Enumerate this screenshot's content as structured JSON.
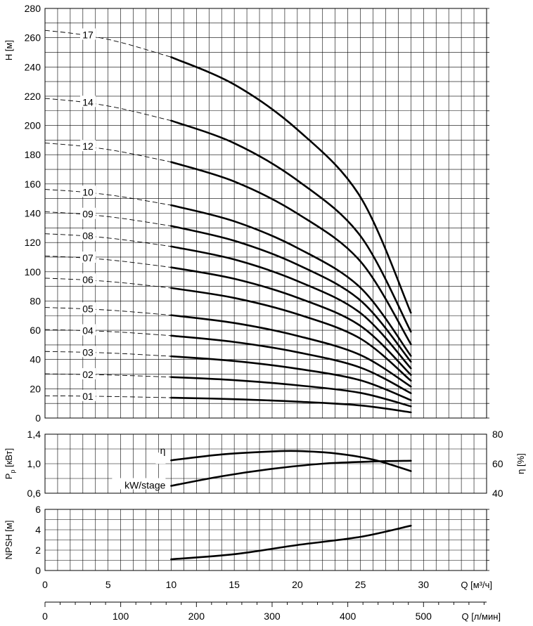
{
  "chart_data": [
    {
      "type": "line",
      "panel": "head",
      "ylabel": "H [м]",
      "ylim": [
        0,
        280
      ],
      "xlim": [
        0,
        35
      ],
      "yticks": [
        0,
        20,
        40,
        60,
        80,
        100,
        120,
        140,
        160,
        180,
        200,
        220,
        240,
        260,
        280
      ],
      "ytick_labels": [
        "0",
        "20",
        "40",
        "60",
        "80",
        "100",
        "120",
        "140",
        "160",
        "180",
        "200",
        "220",
        "240",
        "260",
        "280"
      ],
      "grid": true,
      "operating_range": [
        10,
        29
      ],
      "series": [
        {
          "name": "01",
          "extension": [
            [
              0,
              15.2
            ],
            [
              3,
              15.0
            ],
            [
              6,
              14.6
            ],
            [
              10,
              13.9
            ]
          ],
          "values": [
            [
              10,
              13.9
            ],
            [
              15,
              12.9
            ],
            [
              20,
              11.2
            ],
            [
              25,
              8.6
            ],
            [
              29,
              3.9
            ]
          ]
        },
        {
          "name": "02",
          "extension": [
            [
              0,
              30.2
            ],
            [
              3,
              29.8
            ],
            [
              6,
              29.2
            ],
            [
              10,
              28.0
            ]
          ],
          "values": [
            [
              10,
              28.0
            ],
            [
              15,
              25.9
            ],
            [
              20,
              22.4
            ],
            [
              25,
              17.2
            ],
            [
              29,
              8.0
            ]
          ]
        },
        {
          "name": "03",
          "extension": [
            [
              0,
              45.5
            ],
            [
              3,
              45.0
            ],
            [
              6,
              44.1
            ],
            [
              10,
              42.2
            ]
          ],
          "values": [
            [
              10,
              42.2
            ],
            [
              15,
              39.0
            ],
            [
              20,
              33.7
            ],
            [
              25,
              25.8
            ],
            [
              29,
              12.2
            ]
          ]
        },
        {
          "name": "04",
          "extension": [
            [
              0,
              60.5
            ],
            [
              3,
              59.8
            ],
            [
              6,
              58.7
            ],
            [
              10,
              56.3
            ]
          ],
          "values": [
            [
              10,
              56.3
            ],
            [
              15,
              52.0
            ],
            [
              20,
              45.0
            ],
            [
              25,
              34.5
            ],
            [
              29,
              17.0
            ]
          ]
        },
        {
          "name": "05",
          "extension": [
            [
              0,
              75.6
            ],
            [
              3,
              74.7
            ],
            [
              6,
              73.2
            ],
            [
              10,
              70.3
            ]
          ],
          "values": [
            [
              10,
              70.3
            ],
            [
              15,
              65.0
            ],
            [
              20,
              56.2
            ],
            [
              25,
              43.1
            ],
            [
              29,
              21.5
            ]
          ]
        },
        {
          "name": "06",
          "extension": [
            [
              0,
              95.6
            ],
            [
              3,
              94.5
            ],
            [
              6,
              92.6
            ],
            [
              10,
              88.9
            ]
          ],
          "values": [
            [
              10,
              88.9
            ],
            [
              15,
              82.1
            ],
            [
              20,
              71.0
            ],
            [
              25,
              54.3
            ],
            [
              29,
              25.5
            ]
          ]
        },
        {
          "name": "07",
          "extension": [
            [
              0,
              110.8
            ],
            [
              3,
              109.5
            ],
            [
              6,
              107.3
            ],
            [
              10,
              103.0
            ]
          ],
          "values": [
            [
              10,
              103.0
            ],
            [
              15,
              95.2
            ],
            [
              20,
              82.3
            ],
            [
              25,
              63.0
            ],
            [
              29,
              29.5
            ]
          ]
        },
        {
          "name": "08",
          "extension": [
            [
              0,
              126.0
            ],
            [
              3,
              124.6
            ],
            [
              6,
              122.1
            ],
            [
              10,
              117.3
            ]
          ],
          "values": [
            [
              10,
              117.3
            ],
            [
              15,
              108.4
            ],
            [
              20,
              93.7
            ],
            [
              25,
              71.8
            ],
            [
              29,
              34.0
            ]
          ]
        },
        {
          "name": "09",
          "extension": [
            [
              0,
              141.0
            ],
            [
              3,
              139.4
            ],
            [
              6,
              136.6
            ],
            [
              10,
              131.3
            ]
          ],
          "values": [
            [
              10,
              131.3
            ],
            [
              15,
              121.2
            ],
            [
              20,
              104.9
            ],
            [
              25,
              80.4
            ],
            [
              29,
              38.5
            ]
          ]
        },
        {
          "name": "10",
          "extension": [
            [
              0,
              156.3
            ],
            [
              3,
              154.5
            ],
            [
              6,
              151.4
            ],
            [
              10,
              145.5
            ]
          ],
          "values": [
            [
              10,
              145.5
            ],
            [
              15,
              134.5
            ],
            [
              20,
              116.3
            ],
            [
              25,
              89.1
            ],
            [
              29,
              42.5
            ]
          ]
        },
        {
          "name": "12",
          "extension": [
            [
              0,
              188.0
            ],
            [
              3,
              185.8
            ],
            [
              6,
              182.1
            ],
            [
              10,
              175.0
            ]
          ],
          "values": [
            [
              10,
              175.0
            ],
            [
              15,
              161.7
            ],
            [
              20,
              139.8
            ],
            [
              25,
              107.1
            ],
            [
              29,
              50.5
            ]
          ]
        },
        {
          "name": "14",
          "extension": [
            [
              0,
              218.5
            ],
            [
              3,
              216.0
            ],
            [
              6,
              211.6
            ],
            [
              10,
              203.3
            ]
          ],
          "values": [
            [
              10,
              203.3
            ],
            [
              15,
              187.9
            ],
            [
              20,
              162.5
            ],
            [
              25,
              124.5
            ],
            [
              29,
              59.0
            ]
          ]
        },
        {
          "name": "17",
          "extension": [
            [
              0,
              265.0
            ],
            [
              3,
              262.0
            ],
            [
              6,
              256.8
            ],
            [
              10,
              246.7
            ]
          ],
          "values": [
            [
              10,
              246.7
            ],
            [
              15,
              228.0
            ],
            [
              20,
              197.2
            ],
            [
              25,
              151.1
            ],
            [
              29,
              72.0
            ]
          ]
        }
      ]
    },
    {
      "type": "line",
      "panel": "power-efficiency",
      "ylabel": "P_p [кВт]",
      "ylabel_main": "P",
      "ylabel_sub": "p",
      "ylabel_unit": " [кВт]",
      "ylim": [
        0.6,
        1.4
      ],
      "yticks": [
        0.6,
        1.0,
        1.4
      ],
      "ytick_labels": [
        "0,6",
        "1,0",
        "1,4"
      ],
      "y2label": "η [%]",
      "y2lim": [
        40,
        80
      ],
      "y2ticks": [
        40,
        60,
        80
      ],
      "y2tick_labels": [
        "40",
        "60",
        "80"
      ],
      "grid": true,
      "series": [
        {
          "name": "η",
          "axis": "right",
          "values": [
            [
              10,
              62.3
            ],
            [
              14,
              66.3
            ],
            [
              18,
              68.3
            ],
            [
              20,
              68.6
            ],
            [
              23,
              67.0
            ],
            [
              26,
              62.8
            ],
            [
              29,
              55.0
            ]
          ]
        },
        {
          "name": "kW/stage",
          "axis": "left",
          "values": [
            [
              10,
              0.7
            ],
            [
              14,
              0.83
            ],
            [
              18,
              0.93
            ],
            [
              22,
              1.0
            ],
            [
              26,
              1.03
            ],
            [
              29,
              1.04
            ]
          ]
        }
      ]
    },
    {
      "type": "line",
      "panel": "npsh",
      "ylabel": "NPSH [м]",
      "ylim": [
        0,
        6
      ],
      "yticks": [
        0,
        2,
        4,
        6
      ],
      "ytick_labels": [
        "0",
        "2",
        "4",
        "6"
      ],
      "grid": true,
      "series": [
        {
          "name": "NPSH",
          "values": [
            [
              10,
              1.1
            ],
            [
              15,
              1.6
            ],
            [
              20,
              2.5
            ],
            [
              25,
              3.3
            ],
            [
              29,
              4.4
            ]
          ]
        }
      ]
    },
    {
      "type": "axis",
      "xlabel": "Q [м³/ч]",
      "xlim": [
        0,
        35
      ],
      "xticks": [
        0,
        5,
        10,
        15,
        20,
        25,
        30
      ],
      "xtick_labels": [
        "0",
        "5",
        "10",
        "15",
        "20",
        "25",
        "30"
      ],
      "xlabel2": "Q [л/мин]",
      "x2ticks": [
        0,
        100,
        200,
        300,
        400,
        500
      ],
      "x2tick_labels": [
        "0",
        "100",
        "200",
        "300",
        "400",
        "500"
      ]
    }
  ]
}
